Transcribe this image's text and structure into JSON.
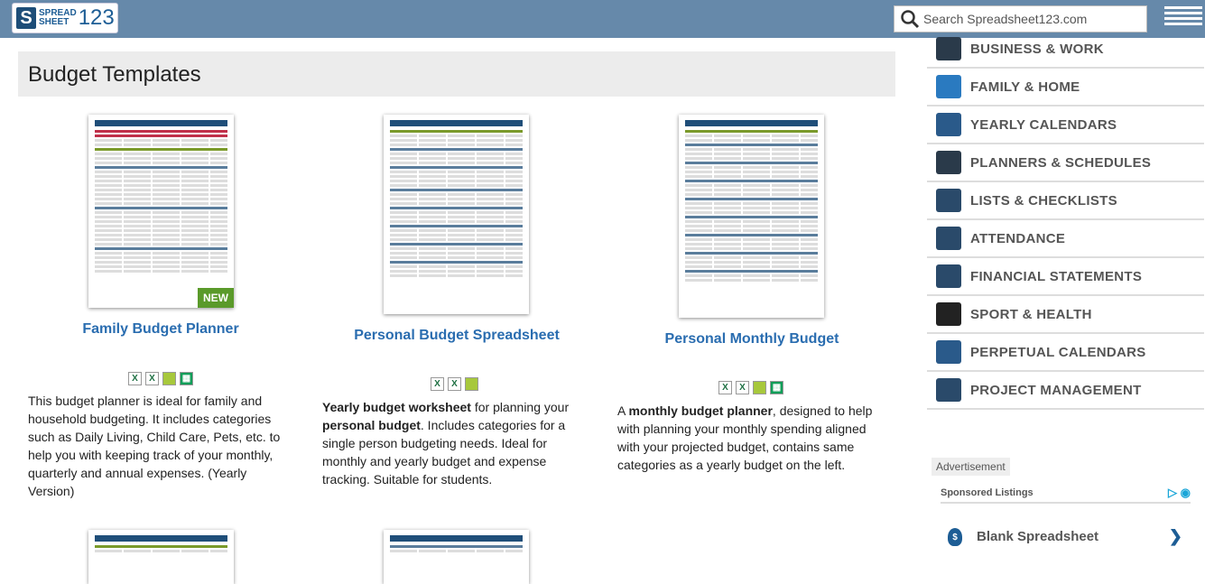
{
  "header": {
    "logo_text": "SPREADSHEET123",
    "logo_line1": "SPREAD",
    "logo_line2": "SHEET",
    "logo_num": "123",
    "search_placeholder": "Search Spreadsheet123.com"
  },
  "page_title": "Budget Templates",
  "cards": [
    {
      "title": "Family Budget Planner",
      "badge": "NEW",
      "desc": "This budget planner is ideal for family and household budgeting. It includes categories such as Daily Living, Child Care, Pets, etc. to help you with keeping track of your monthly, quarterly and annual expenses. (Yearly Version)"
    },
    {
      "title": "Personal Budget Spreadsheet",
      "desc_b1": "Yearly budget worksheet",
      "desc_t1": " for planning your ",
      "desc_b2": "personal budget",
      "desc_t2": ". Includes categories for a single person budgeting needs. Ideal for monthly and yearly budget and expense tracking. Suitable for students."
    },
    {
      "title": "Personal Monthly Budget",
      "desc_t0": "A ",
      "desc_b1": "monthly budget planner",
      "desc_t1": ", designed to help with planning your monthly spending aligned with your projected budget, contains same categories as a yearly budget on the left."
    }
  ],
  "sidebar": {
    "items": [
      {
        "label": "BUSINESS & WORK",
        "icon": "briefcase-icon",
        "color": "#2a3a4a"
      },
      {
        "label": "FAMILY & HOME",
        "icon": "house-icon",
        "color": "#2a7ac0"
      },
      {
        "label": "YEARLY CALENDARS",
        "icon": "calendar-icon",
        "color": "#2a5a8a"
      },
      {
        "label": "PLANNERS & SCHEDULES",
        "icon": "planner-icon",
        "color": "#2a3a4a"
      },
      {
        "label": "LISTS & CHECKLISTS",
        "icon": "checklist-icon",
        "color": "#2a4a6a"
      },
      {
        "label": "ATTENDANCE",
        "icon": "people-icon",
        "color": "#2a4a6a"
      },
      {
        "label": "FINANCIAL STATEMENTS",
        "icon": "statement-icon",
        "color": "#2a4a6a"
      },
      {
        "label": "SPORT & HEALTH",
        "icon": "runner-icon",
        "color": "#222"
      },
      {
        "label": "PERPETUAL CALENDARS",
        "icon": "calendar-icon",
        "color": "#2a5a8a"
      },
      {
        "label": "PROJECT MANAGEMENT",
        "icon": "gantt-icon",
        "color": "#2a4a6a"
      }
    ]
  },
  "ad": {
    "label": "Advertisement",
    "sponsored": "Sponsored Listings",
    "listing": "Blank Spreadsheet"
  }
}
